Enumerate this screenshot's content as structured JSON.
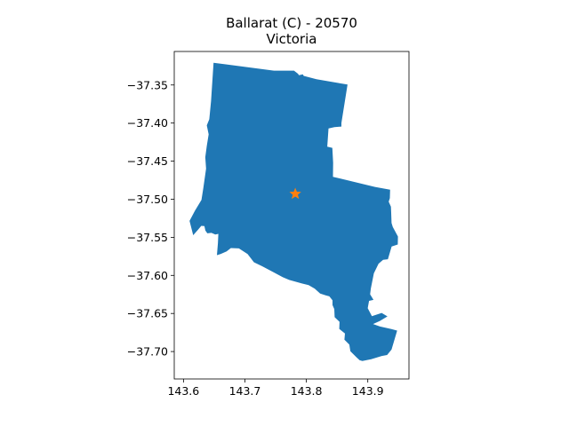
{
  "title_line1": "Ballarat (C) - 20570",
  "title_line2": "Victoria",
  "chart_data": {
    "type": "map",
    "region_name": "Ballarat (C) - 20570",
    "state": "Victoria",
    "fill_color": "#1f77b4",
    "marker": {
      "shape": "star",
      "color": "#ff7f0e",
      "lon": 143.782,
      "lat": -37.493
    },
    "xlim": [
      143.585,
      143.967
    ],
    "ylim": [
      -37.736,
      -37.306
    ],
    "xticks": [
      143.6,
      143.7,
      143.8,
      143.9
    ],
    "xtick_labels": [
      "143.6",
      "143.7",
      "143.8",
      "143.9"
    ],
    "yticks": [
      -37.35,
      -37.4,
      -37.45,
      -37.5,
      -37.55,
      -37.6,
      -37.65,
      -37.7
    ],
    "ytick_labels": [
      "−37.35",
      "−37.40",
      "−37.45",
      "−37.50",
      "−37.55",
      "−37.60",
      "−37.65",
      "−37.70"
    ],
    "boundary": [
      [
        143.6489,
        -37.3208
      ],
      [
        143.7472,
        -37.3312
      ],
      [
        143.7799,
        -37.3312
      ],
      [
        143.7864,
        -37.3353
      ],
      [
        143.7879,
        -37.3371
      ],
      [
        143.7943,
        -37.3359
      ],
      [
        143.7957,
        -37.338
      ],
      [
        143.8163,
        -37.3424
      ],
      [
        143.867,
        -37.3495
      ],
      [
        143.857,
        -37.3999
      ],
      [
        143.857,
        -37.4046
      ],
      [
        143.8457,
        -37.4053
      ],
      [
        143.836,
        -37.4071
      ],
      [
        143.834,
        -37.4309
      ],
      [
        143.8423,
        -37.4326
      ],
      [
        143.8436,
        -37.4521
      ],
      [
        143.8433,
        -37.4706
      ],
      [
        143.9116,
        -37.4838
      ],
      [
        143.9363,
        -37.4874
      ],
      [
        143.9359,
        -37.4985
      ],
      [
        143.934,
        -37.5032
      ],
      [
        143.9376,
        -37.5098
      ],
      [
        143.9381,
        -37.5179
      ],
      [
        143.9386,
        -37.5311
      ],
      [
        143.9406,
        -37.5365
      ],
      [
        143.9491,
        -37.549
      ],
      [
        143.9487,
        -37.5595
      ],
      [
        143.9388,
        -37.5621
      ],
      [
        143.9327,
        -37.5788
      ],
      [
        143.9249,
        -37.5795
      ],
      [
        143.9175,
        -37.5846
      ],
      [
        143.9099,
        -37.5973
      ],
      [
        143.9049,
        -37.6172
      ],
      [
        143.9038,
        -37.6248
      ],
      [
        143.9093,
        -37.6322
      ],
      [
        143.9021,
        -37.6335
      ],
      [
        143.8998,
        -37.643
      ],
      [
        143.9066,
        -37.6536
      ],
      [
        143.9226,
        -37.6493
      ],
      [
        143.932,
        -37.6538
      ],
      [
        143.9197,
        -37.6598
      ],
      [
        143.9086,
        -37.6639
      ],
      [
        143.9198,
        -37.6671
      ],
      [
        143.9384,
        -37.6705
      ],
      [
        143.9477,
        -37.6725
      ],
      [
        143.9386,
        -37.6974
      ],
      [
        143.9314,
        -37.7045
      ],
      [
        143.9227,
        -37.7058
      ],
      [
        143.9055,
        -37.71
      ],
      [
        143.8912,
        -37.7124
      ],
      [
        143.8867,
        -37.7114
      ],
      [
        143.8817,
        -37.7076
      ],
      [
        143.8716,
        -37.6995
      ],
      [
        143.8699,
        -37.6908
      ],
      [
        143.862,
        -37.6844
      ],
      [
        143.8628,
        -37.6762
      ],
      [
        143.8536,
        -37.6703
      ],
      [
        143.854,
        -37.661
      ],
      [
        143.846,
        -37.6549
      ],
      [
        143.8455,
        -37.6442
      ],
      [
        143.8425,
        -37.6391
      ],
      [
        143.8425,
        -37.6328
      ],
      [
        143.8374,
        -37.6275
      ],
      [
        143.8319,
        -37.6263
      ],
      [
        143.8225,
        -37.6238
      ],
      [
        143.8136,
        -37.6175
      ],
      [
        143.8036,
        -37.6128
      ],
      [
        143.7926,
        -37.6106
      ],
      [
        143.7719,
        -37.606
      ],
      [
        143.7614,
        -37.6022
      ],
      [
        143.7462,
        -37.5957
      ],
      [
        143.7281,
        -37.588
      ],
      [
        143.7147,
        -37.5828
      ],
      [
        143.7044,
        -37.5719
      ],
      [
        143.6902,
        -37.5646
      ],
      [
        143.6771,
        -37.5641
      ],
      [
        143.6702,
        -37.5686
      ],
      [
        143.6608,
        -37.5718
      ],
      [
        143.6545,
        -37.5734
      ],
      [
        143.6561,
        -37.5578
      ],
      [
        143.6568,
        -37.5455
      ],
      [
        143.6518,
        -37.5464
      ],
      [
        143.6455,
        -37.5442
      ],
      [
        143.6388,
        -37.5448
      ],
      [
        143.6356,
        -37.541
      ],
      [
        143.6341,
        -37.5353
      ],
      [
        143.629,
        -37.535
      ],
      [
        143.6232,
        -37.5405
      ],
      [
        143.6158,
        -37.5472
      ],
      [
        143.6099,
        -37.5285
      ],
      [
        143.6187,
        -37.5151
      ],
      [
        143.6293,
        -37.501
      ],
      [
        143.6323,
        -37.4853
      ],
      [
        143.6368,
        -37.4598
      ],
      [
        143.6355,
        -37.4448
      ],
      [
        143.638,
        -37.43
      ],
      [
        143.641,
        -37.4148
      ],
      [
        143.638,
        -37.403
      ],
      [
        143.642,
        -37.395
      ],
      [
        143.6449,
        -37.371
      ]
    ]
  }
}
